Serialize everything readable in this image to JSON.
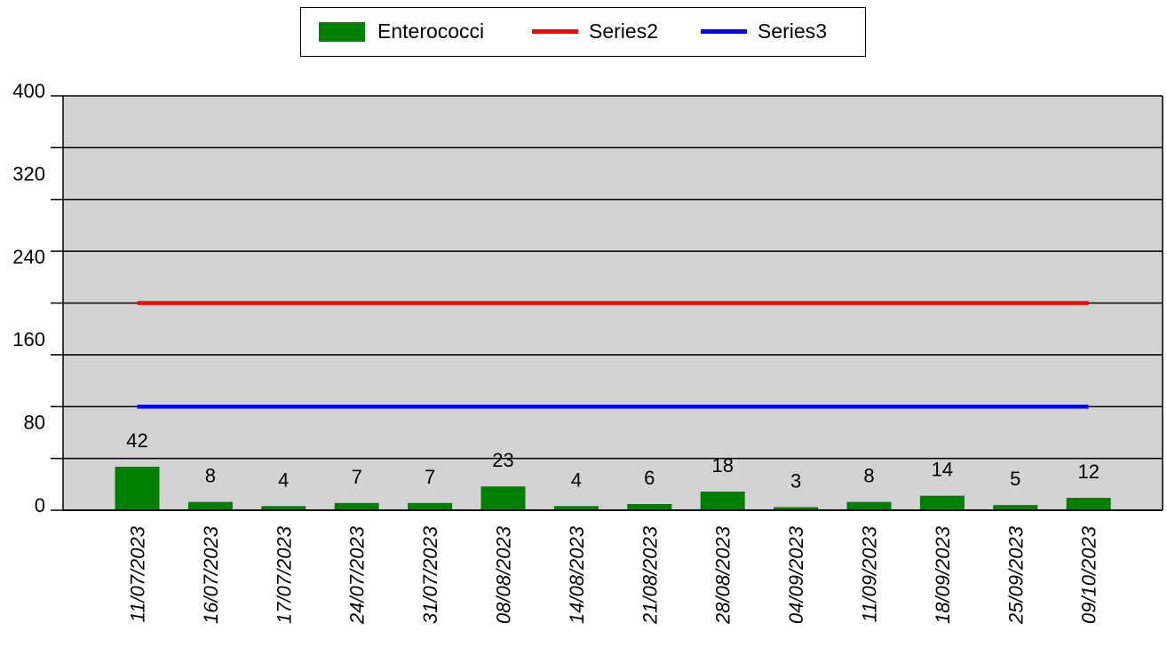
{
  "legend": {
    "bar_label": "Enterococci",
    "line1_label": "Series2",
    "line2_label": "Series3"
  },
  "colors": {
    "bar": "#008000",
    "line1": "#ff0000",
    "line2": "#0000ff",
    "plot_bg": "#d3d3d3"
  },
  "chart_data": {
    "type": "bar",
    "categories": [
      "11/07/2023",
      "16/07/2023",
      "17/07/2023",
      "24/07/2023",
      "31/07/2023",
      "08/08/2023",
      "14/08/2023",
      "21/08/2023",
      "28/08/2023",
      "04/09/2023",
      "11/09/2023",
      "18/09/2023",
      "25/09/2023",
      "09/10/2023"
    ],
    "series": [
      {
        "name": "Enterococci",
        "type": "bar",
        "values": [
          42,
          8,
          4,
          7,
          7,
          23,
          4,
          6,
          18,
          3,
          8,
          14,
          5,
          12
        ]
      },
      {
        "name": "Series2",
        "type": "line",
        "values": [
          200,
          200,
          200,
          200,
          200,
          200,
          200,
          200,
          200,
          200,
          200,
          200,
          200,
          200
        ]
      },
      {
        "name": "Series3",
        "type": "line",
        "values": [
          100,
          100,
          100,
          100,
          100,
          100,
          100,
          100,
          100,
          100,
          100,
          100,
          100,
          100
        ]
      }
    ],
    "ylim": [
      0,
      400
    ],
    "y_tick_labels": [
      "0",
      "80",
      "160",
      "240",
      "320",
      "400"
    ],
    "y_gridlines": [
      0,
      50,
      100,
      150,
      200,
      250,
      300,
      350,
      400
    ],
    "grid": true,
    "legend_position": "top-center",
    "title": "",
    "xlabel": "",
    "ylabel": ""
  }
}
